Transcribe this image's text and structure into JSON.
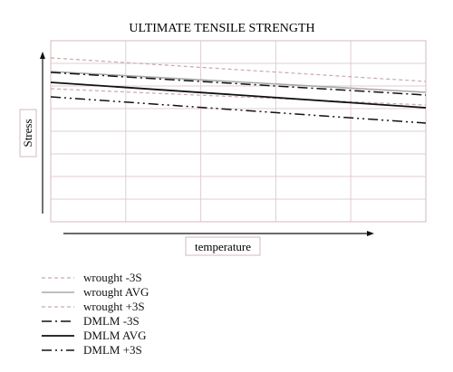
{
  "chart_data": {
    "type": "line",
    "title": "ULTIMATE TENSILE STRENGTH",
    "xlabel": "temperature",
    "ylabel": "Stress",
    "grid": true,
    "legend_position": "bottom-left",
    "x": [
      0,
      1
    ],
    "xlim": [
      0,
      1
    ],
    "ylim": [
      0,
      1
    ],
    "series": [
      {
        "name": "wrought -3S",
        "values": [
          0.735,
          0.645
        ],
        "color": "#c9a9ac",
        "dash": "4,3",
        "width": 1.2
      },
      {
        "name": "wrought AVG",
        "values": [
          0.83,
          0.715
        ],
        "color": "#a8a8a8",
        "dash": "",
        "width": 1.6
      },
      {
        "name": "wrought +3S",
        "values": [
          0.905,
          0.775
        ],
        "color": "#c9a9ac",
        "dash": "4,3",
        "width": 1.2
      },
      {
        "name": "DMLM -3S",
        "values": [
          0.825,
          0.7
        ],
        "color": "#111111",
        "dash": "11,4,2,4",
        "width": 1.5
      },
      {
        "name": "DMLM AVG",
        "values": [
          0.77,
          0.63
        ],
        "color": "#111111",
        "dash": "",
        "width": 1.8
      },
      {
        "name": "DMLM +3S",
        "values": [
          0.69,
          0.545
        ],
        "color": "#111111",
        "dash": "11,4,2,4,2,4",
        "width": 1.5
      }
    ]
  }
}
